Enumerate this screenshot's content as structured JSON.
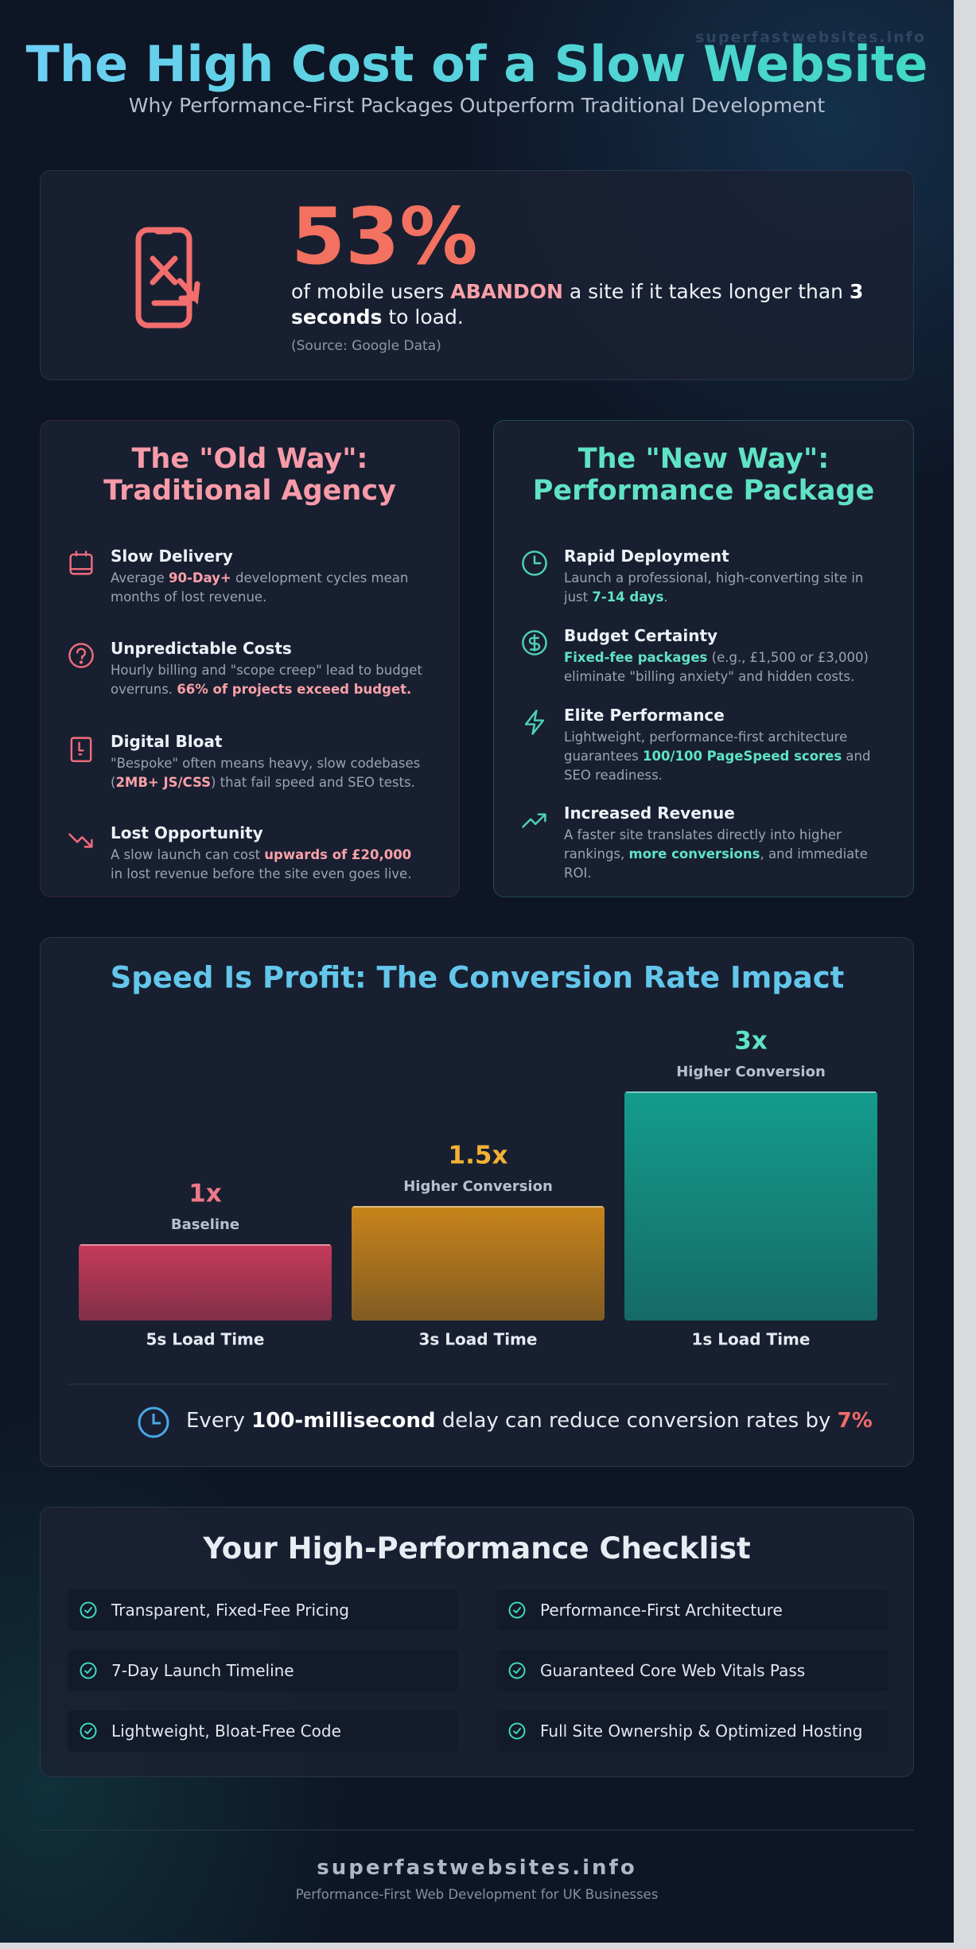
{
  "watermark": "superfastwebsites.info",
  "header": {
    "title": "The High Cost of a Slow Website",
    "subtitle": "Why Performance-First Packages Outperform Traditional Development"
  },
  "stat": {
    "figure": "53%",
    "parts": [
      "of mobile users ",
      {
        "em": "ABANDON"
      },
      " a site if it takes longer than ",
      {
        "em": "3 seconds"
      },
      " to load."
    ],
    "source": "(Source: Google Data)"
  },
  "old_way": {
    "title_lines": [
      "The \"Old Way\":",
      "Traditional Agency"
    ],
    "items": [
      {
        "heading": "Slow Delivery",
        "parts": [
          "Average ",
          {
            "em": "90-Day+"
          },
          " development cycles mean months of lost revenue."
        ]
      },
      {
        "heading": "Unpredictable Costs",
        "parts": [
          "Hourly billing and \"scope creep\" lead to budget overruns. ",
          {
            "em": "66% of projects exceed budget."
          }
        ]
      },
      {
        "heading": "Digital Bloat",
        "parts": [
          "\"Bespoke\" often means heavy, slow codebases (",
          {
            "em": "2MB+ JS/CSS"
          },
          ") that fail speed and SEO tests."
        ]
      },
      {
        "heading": "Lost Opportunity",
        "parts": [
          "A slow launch can cost ",
          {
            "em": "upwards of £20,000"
          },
          " in lost revenue before the site even goes live."
        ]
      }
    ]
  },
  "new_way": {
    "title_lines": [
      "The \"New Way\":",
      "Performance Package"
    ],
    "items": [
      {
        "heading": "Rapid Deployment",
        "parts": [
          "Launch a professional, high-converting site in just ",
          {
            "em": "7-14 days"
          },
          "."
        ]
      },
      {
        "heading": "Budget Certainty",
        "parts": [
          {
            "em": "Fixed-fee packages"
          },
          " (e.g., £1,500 or £3,000) eliminate \"billing anxiety\" and hidden costs."
        ]
      },
      {
        "heading": "Elite Performance",
        "parts": [
          "Lightweight, performance-first architecture guarantees ",
          {
            "em": "100/100 PageSpeed scores"
          },
          " and SEO readiness."
        ]
      },
      {
        "heading": "Increased Revenue",
        "parts": [
          "A faster site translates directly into higher rankings, ",
          {
            "em": "more conversions"
          },
          ", and immediate ROI."
        ]
      }
    ]
  },
  "chart_data": {
    "type": "bar",
    "title": "Speed Is Profit: The Conversion Rate Impact",
    "categories": [
      "5s Load Time",
      "3s Load Time",
      "1s Load Time"
    ],
    "values": [
      1,
      1.5,
      3
    ],
    "value_labels": [
      "1x",
      "1.5x",
      "3x"
    ],
    "sublabels": [
      "Baseline",
      "Higher Conversion",
      "Higher Conversion"
    ],
    "colors": [
      "#c73a5a",
      "#c8841a",
      "#149c8c"
    ],
    "value_label_colors": [
      "#f07888",
      "#f2b233",
      "#5fe3c4"
    ],
    "note_parts": [
      "Every ",
      {
        "em": "100-millisecond"
      },
      " delay can reduce conversion rates by ",
      {
        "em": "7%"
      }
    ]
  },
  "checklist": {
    "title": "Your High-Performance Checklist",
    "items": [
      "Transparent, Fixed-Fee Pricing",
      "Performance-First Architecture",
      "7-Day Launch Timeline",
      "Guaranteed Core Web Vitals Pass",
      "Lightweight, Bloat-Free Code",
      "Full Site Ownership & Optimized Hosting"
    ]
  },
  "footer": {
    "brand": "superfastwebsites.info",
    "tagline": "Performance-First Web Development for UK Businesses"
  }
}
